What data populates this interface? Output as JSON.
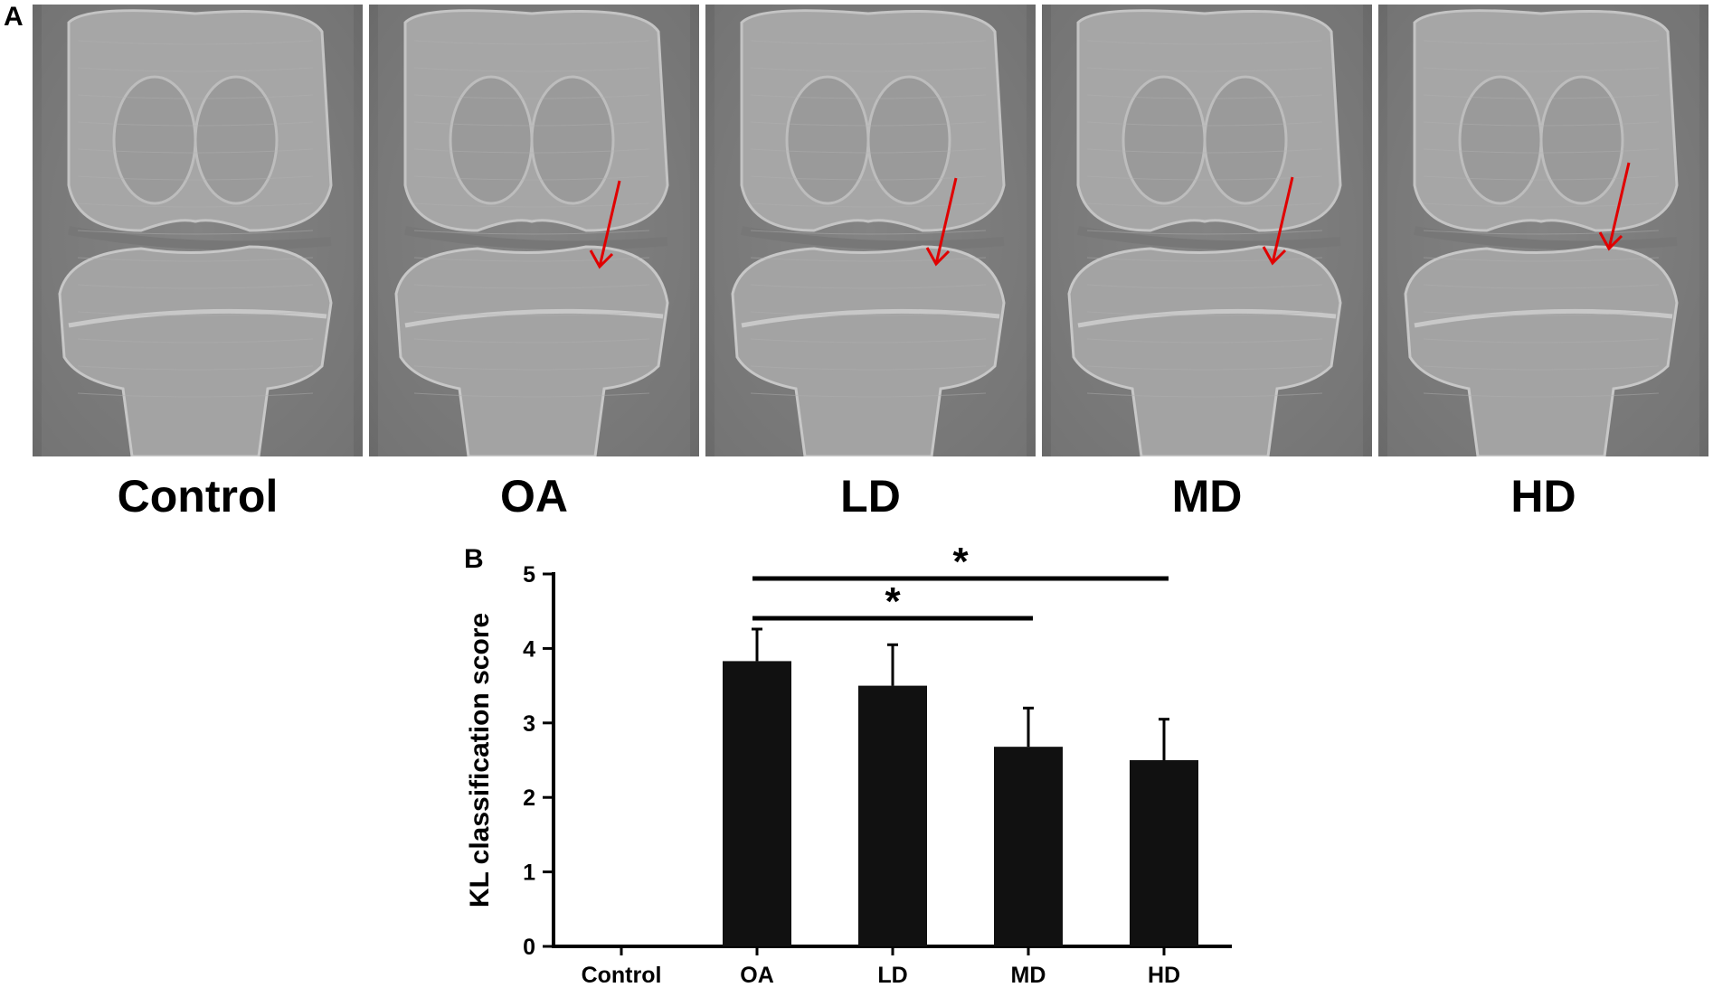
{
  "panel_a": {
    "letter": "A",
    "panels": [
      {
        "label": "Control",
        "arrow": false
      },
      {
        "label": "OA",
        "arrow": true
      },
      {
        "label": "LD",
        "arrow": true
      },
      {
        "label": "MD",
        "arrow": true
      },
      {
        "label": "HD",
        "arrow": true
      }
    ],
    "arrow_color": "#e00000"
  },
  "panel_b": {
    "letter": "B"
  },
  "chart_data": {
    "type": "bar",
    "title": "",
    "xlabel": "",
    "ylabel": "KL classification score",
    "categories": [
      "Control",
      "OA",
      "LD",
      "MD",
      "HD"
    ],
    "values": [
      0,
      3.83,
      3.5,
      2.68,
      2.5
    ],
    "errors": [
      0,
      0.43,
      0.55,
      0.52,
      0.55
    ],
    "ylim": [
      0,
      5
    ],
    "yticks": [
      "0",
      "1",
      "2",
      "3",
      "4",
      "5"
    ],
    "bar_color": "#111111",
    "grid": false,
    "significance": [
      {
        "from": "OA",
        "to": "HD",
        "label": "*"
      },
      {
        "from": "OA",
        "to": "MD",
        "label": "*"
      }
    ]
  }
}
